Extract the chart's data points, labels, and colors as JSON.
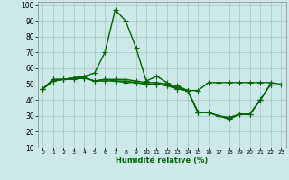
{
  "xlabel": "Humidité relative (%)",
  "bg_color": "#cce8e8",
  "grid_color": "#aacccc",
  "line_color": "#006600",
  "marker": "+",
  "markersize": 4,
  "linewidth": 1.0,
  "xlim": [
    -0.5,
    23.5
  ],
  "ylim": [
    10,
    102
  ],
  "yticks": [
    10,
    20,
    30,
    40,
    50,
    60,
    70,
    80,
    90,
    100
  ],
  "xticks": [
    0,
    1,
    2,
    3,
    4,
    5,
    6,
    7,
    8,
    9,
    10,
    11,
    12,
    13,
    14,
    15,
    16,
    17,
    18,
    19,
    20,
    21,
    22,
    23
  ],
  "series": [
    [
      47,
      53,
      53,
      54,
      55,
      57,
      70,
      97,
      90,
      73,
      52,
      55,
      51,
      47,
      46,
      46,
      51,
      51,
      51,
      51,
      51,
      51,
      51,
      50
    ],
    [
      47,
      53,
      53,
      54,
      54,
      52,
      53,
      53,
      53,
      52,
      51,
      51,
      50,
      49,
      46,
      32,
      32,
      30,
      29,
      31,
      31,
      40,
      50,
      null
    ],
    [
      47,
      52,
      53,
      54,
      54,
      52,
      53,
      52,
      52,
      51,
      50,
      50,
      49,
      48,
      46,
      32,
      32,
      30,
      28,
      31,
      31,
      40,
      50,
      null
    ],
    [
      47,
      52,
      53,
      53,
      54,
      52,
      52,
      52,
      51,
      51,
      50,
      50,
      49,
      47,
      46,
      32,
      32,
      30,
      28,
      31,
      31,
      40,
      50,
      null
    ]
  ]
}
